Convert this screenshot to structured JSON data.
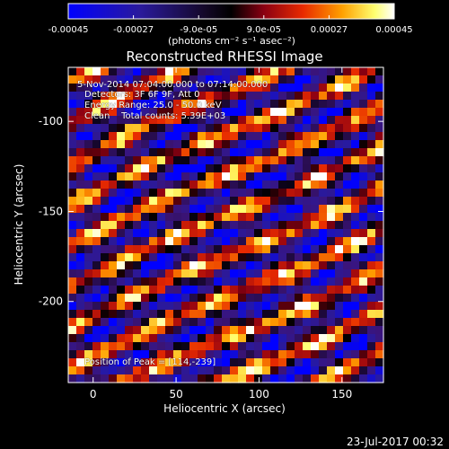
{
  "chart_data": {
    "type": "heatmap",
    "title": "Reconstructed RHESSI Image",
    "xlabel": "Heliocentric X (arcsec)",
    "ylabel": "Heliocentric Y (arcsec)",
    "xlim": [
      -15,
      175
    ],
    "ylim": [
      -245,
      -70
    ],
    "xticks": [
      "0",
      "50",
      "100",
      "150"
    ],
    "xtick_values": [
      0,
      50,
      100,
      150
    ],
    "yticks": [
      "-100",
      "-150",
      "-200"
    ],
    "ytick_values": [
      -100,
      -150,
      -200
    ],
    "colorbar": {
      "min": -0.00045,
      "max": 0.00045,
      "tick_labels": [
        "-0.00045",
        "-0.00027",
        "-9.0e-05",
        "9.0e-05",
        "0.00027",
        "0.00045"
      ],
      "tick_values": [
        -0.00045,
        -0.00027,
        -9e-05,
        9e-05,
        0.00027,
        0.00045
      ],
      "unit_label": "(photons cm⁻² s⁻¹ asec⁻²)",
      "colors": [
        "#0000ff",
        "#3a0f6e",
        "#000000",
        "#7a0010",
        "#e42000",
        "#ff9a00",
        "#ffff60",
        "#ffffff"
      ]
    },
    "annotations": {
      "time_range": "5-Nov-2014 07:04:00.000 to 07:14:00.000",
      "detectors": "Detectors: 3F 6F 9F, Att 0",
      "energy_range": "Energy Range: 25.0 - 50.0 keV",
      "method": "Clean    Total counts: 5.39E+03",
      "peak": "Position of Peak = [114,-239]"
    },
    "peak_position": [
      114,
      -239
    ],
    "grid": false
  },
  "footer": {
    "timestamp": "23-Jul-2017 00:32"
  }
}
